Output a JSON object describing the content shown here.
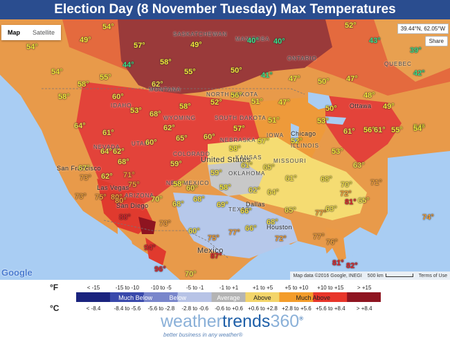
{
  "title": "Election Day (8 November Tuesday) Max Temperatures",
  "map_controls": {
    "map_tab": "Map",
    "satellite_tab": "Satellite",
    "coordinates": "39.44°N, 62.05°W",
    "share_button": "Share",
    "google_logo": "Google",
    "map_data": "Map data ©2016 Google, INEGI",
    "scale": "500 km",
    "terms": "Terms of Use"
  },
  "places": {
    "countries": [
      "United States",
      "Mexico"
    ],
    "regions": [
      "SASKATCHEWAN",
      "MANITOBA",
      "ONTARIO",
      "QUEBEC",
      "NORTH DAKOTA",
      "SOUTH DAKOTA",
      "NEBRASKA",
      "MONTANA",
      "IDAHO",
      "WYOMING",
      "NEW MEXICO",
      "OKLAHOMA",
      "KANSAS",
      "TEXAS",
      "MISSOURI",
      "ILLINOIS",
      "IOWA",
      "NEVADA",
      "UTAH",
      "ARIZONA",
      "COLORADO"
    ],
    "cities": [
      "Ottawa",
      "Chicago",
      "San Francisco",
      "Las Vegas",
      "San Diego",
      "Dallas",
      "Houston"
    ]
  },
  "temperature_labels": [
    "54°",
    "52°",
    "49°",
    "57°",
    "49°",
    "40°",
    "40°",
    "43°",
    "39°",
    "54°",
    "44°",
    "58°",
    "54°",
    "55°",
    "50°",
    "41°",
    "47°",
    "50°",
    "47°",
    "42°",
    "58°",
    "55°",
    "62°",
    "56°",
    "48°",
    "60°",
    "58°",
    "53°",
    "68°",
    "58°",
    "52°",
    "51°",
    "47°",
    "50°",
    "49°",
    "64°",
    "61°",
    "53°",
    "51°",
    "54°",
    "62°",
    "57°",
    "61°",
    "56°",
    "61°",
    "55°",
    "54°",
    "65°",
    "64°",
    "60°",
    "57°",
    "62°",
    "60°",
    "58°",
    "52°",
    "68°",
    "71°",
    "67°",
    "59°",
    "59°",
    "61°",
    "65°",
    "53°",
    "63°",
    "73°",
    "62°",
    "58°",
    "60°",
    "58°",
    "62°",
    "64°",
    "61°",
    "68°",
    "70°",
    "72°",
    "71°",
    "75°",
    "70°",
    "68°",
    "68°",
    "73°",
    "75°",
    "80°",
    "81°",
    "69°",
    "66°",
    "65°",
    "77°",
    "63°",
    "65°",
    "66°",
    "68°",
    "77°",
    "72°",
    "75°",
    "77°",
    "74°",
    "76°",
    "94°",
    "81°",
    "96°",
    "70°",
    "87°",
    "82°",
    "73°",
    "60°",
    "80°",
    "88°"
  ],
  "legend": {
    "f_unit": "°F",
    "c_unit": "°C",
    "f_ranges": [
      "< -15",
      "-15 to -10",
      "-10 to -5",
      "-5 to -1",
      "-1 to +1",
      "+1 to +5",
      "+5 to +10",
      "+10 to +15",
      "> +15"
    ],
    "c_ranges": [
      "< -8.4",
      "-8.4 to -5.6",
      "-5.6 to -2.8",
      "-2.8 to -0.6",
      "-0.6 to +0.6",
      "+0.6 to +2.8",
      "+2.8 to +5.6",
      "+5.6 to +8.4",
      "> +8.4"
    ],
    "categories": [
      "Much Below",
      "Below",
      "Average",
      "Above",
      "Much Above"
    ],
    "colors": [
      "#1a237e",
      "#3949ab",
      "#7986cb",
      "#b7c3e6",
      "#b4b4b4",
      "#f3d56a",
      "#f39c2a",
      "#e8352a",
      "#8e1420"
    ]
  },
  "brand": {
    "name_part1": "weather",
    "name_part2": "trends",
    "name_part3": "360",
    "trademark": "®",
    "tagline": "better business in any weather®"
  }
}
